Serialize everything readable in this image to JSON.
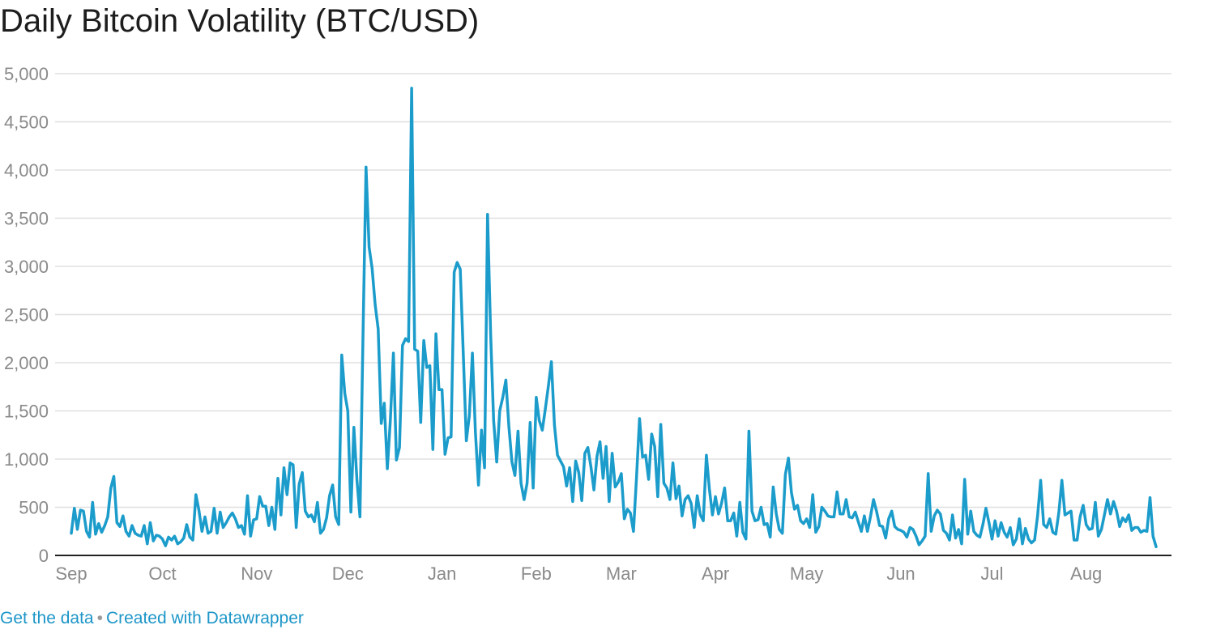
{
  "title": "Daily Bitcoin Volatility (BTC/USD)",
  "footer": {
    "get_data_label": "Get the data",
    "separator": "•",
    "created_with_label": "Created with Datawrapper"
  },
  "colors": {
    "line": "#1b9ccb",
    "grid": "#e0e0e0",
    "axis": "#222222",
    "tick_text": "#8a8a8a",
    "link": "#1d96c8"
  },
  "chart_data": {
    "type": "line",
    "title": "Daily Bitcoin Volatility (BTC/USD)",
    "xlabel": "",
    "ylabel": "",
    "ylim": [
      0,
      5000
    ],
    "y_ticks": [
      0,
      500,
      1000,
      1500,
      2000,
      2500,
      3000,
      3500,
      4000,
      4500,
      5000
    ],
    "y_tick_labels": [
      "0",
      "500",
      "1,000",
      "1,500",
      "2,000",
      "2,500",
      "3,000",
      "3,500",
      "4,000",
      "4,500",
      "5,000"
    ],
    "x_tick_labels": [
      "Sep",
      "Oct",
      "Nov",
      "Dec",
      "Jan",
      "Feb",
      "Mar",
      "Apr",
      "May",
      "Jun",
      "Jul",
      "Aug"
    ],
    "x_tick_days": [
      0,
      30,
      61,
      91,
      122,
      153,
      181,
      212,
      242,
      273,
      303,
      334
    ],
    "grid": true,
    "legend": "none",
    "series": [
      {
        "values": [
          230,
          490,
          270,
          470,
          460,
          250,
          190,
          550,
          220,
          330,
          240,
          310,
          400,
          700,
          820,
          340,
          300,
          410,
          250,
          200,
          310,
          230,
          210,
          200,
          310,
          120,
          340,
          150,
          210,
          200,
          170,
          100,
          190,
          160,
          200,
          120,
          140,
          180,
          320,
          190,
          160,
          630,
          470,
          250,
          400,
          230,
          250,
          490,
          230,
          450,
          290,
          340,
          400,
          440,
          380,
          290,
          310,
          220,
          620,
          200,
          370,
          380,
          610,
          510,
          510,
          310,
          500,
          270,
          800,
          420,
          910,
          630,
          960,
          940,
          290,
          740,
          860,
          460,
          400,
          420,
          350,
          550,
          230,
          270,
          390,
          620,
          730,
          400,
          320,
          2080,
          1680,
          1500,
          450,
          1330,
          780,
          400,
          2300,
          4030,
          3200,
          2980,
          2600,
          2350,
          1370,
          1580,
          900,
          1400,
          2100,
          990,
          1120,
          2180,
          2250,
          2220,
          4850,
          2140,
          2120,
          1380,
          2230,
          1950,
          1970,
          1100,
          2300,
          1720,
          1720,
          1050,
          1220,
          1230,
          2940,
          3040,
          2970,
          2100,
          1190,
          1450,
          2100,
          1280,
          730,
          1300,
          910,
          3540,
          2300,
          1400,
          970,
          1500,
          1640,
          1820,
          1340,
          970,
          830,
          1290,
          750,
          580,
          750,
          1380,
          700,
          1640,
          1400,
          1300,
          1520,
          1760,
          2010,
          1350,
          1040,
          980,
          920,
          720,
          910,
          560,
          980,
          860,
          570,
          1060,
          1120,
          920,
          680,
          1030,
          1180,
          800,
          1130,
          560,
          1060,
          710,
          760,
          850,
          380,
          480,
          440,
          250,
          800,
          1420,
          1020,
          1040,
          790,
          1260,
          1130,
          610,
          1360,
          750,
          700,
          580,
          960,
          590,
          720,
          410,
          580,
          620,
          540,
          290,
          620,
          420,
          360,
          1040,
          690,
          420,
          610,
          430,
          540,
          700,
          360,
          360,
          440,
          200,
          550,
          240,
          170,
          1290,
          460,
          360,
          370,
          500,
          320,
          330,
          190,
          710,
          430,
          270,
          230,
          840,
          1010,
          650,
          480,
          520,
          360,
          330,
          380,
          290,
          630,
          240,
          300,
          500,
          460,
          410,
          400,
          400,
          660,
          430,
          430,
          580,
          400,
          390,
          450,
          350,
          250,
          410,
          250,
          400,
          580,
          460,
          310,
          300,
          180,
          380,
          460,
          300,
          270,
          260,
          240,
          190,
          290,
          270,
          200,
          110,
          150,
          200,
          850,
          250,
          410,
          470,
          430,
          260,
          230,
          160,
          420,
          180,
          270,
          120,
          790,
          220,
          460,
          250,
          210,
          190,
          320,
          490,
          340,
          170,
          360,
          200,
          340,
          240,
          190,
          290,
          110,
          170,
          380,
          120,
          280,
          170,
          130,
          160,
          410,
          780,
          320,
          290,
          380,
          240,
          220,
          450,
          780,
          420,
          440,
          460,
          160,
          160,
          400,
          520,
          320,
          270,
          280,
          550,
          200,
          270,
          420,
          580,
          430,
          560,
          460,
          300,
          390,
          350,
          420,
          260,
          290,
          290,
          240,
          260,
          250,
          600,
          200,
          90
        ]
      }
    ]
  }
}
